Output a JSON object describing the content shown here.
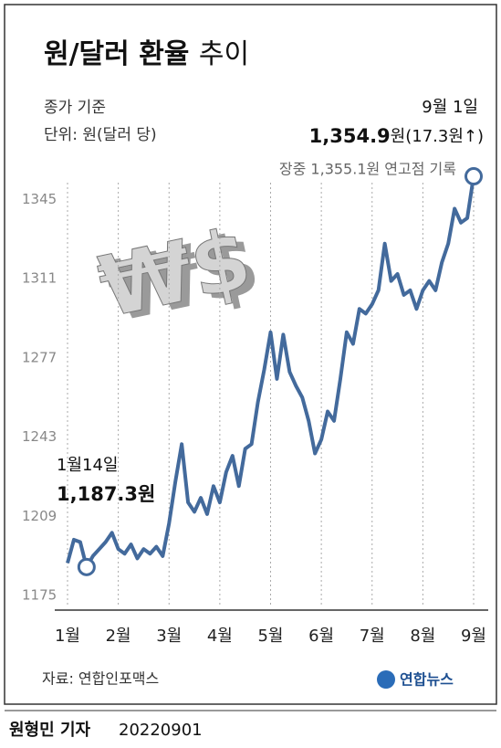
{
  "chart_data": {
    "type": "line",
    "title": {
      "main": "원/달러 환율",
      "light": "추이"
    },
    "subtitle": [
      "종가 기준",
      "단위: 원(달러 당)"
    ],
    "graphic_text": "₩$",
    "categories": [
      "1월",
      null,
      null,
      null,
      null,
      null,
      null,
      null,
      "2월",
      null,
      null,
      null,
      null,
      null,
      null,
      null,
      "3월",
      null,
      null,
      null,
      null,
      null,
      null,
      null,
      "4월",
      null,
      null,
      null,
      null,
      null,
      null,
      null,
      "5월",
      null,
      null,
      null,
      null,
      null,
      null,
      null,
      "6월",
      null,
      null,
      null,
      null,
      null,
      null,
      null,
      "7월",
      null,
      null,
      null,
      null,
      null,
      null,
      null,
      "8월",
      null,
      null,
      null,
      null,
      null,
      null,
      null,
      "9월"
    ],
    "series": [
      {
        "color": "#436a9c",
        "values": [
          1189,
          1199,
          1198,
          1187.3,
          1192,
          1195,
          1198,
          1202,
          1195,
          1193,
          1197,
          1191,
          1195,
          1193,
          1196,
          1192,
          1206,
          1224,
          1240,
          1215,
          1211,
          1217,
          1210,
          1222,
          1215,
          1228,
          1235,
          1222,
          1238,
          1240,
          1258,
          1272,
          1288,
          1268,
          1287,
          1271,
          1265,
          1260,
          1250,
          1236,
          1242,
          1254,
          1250,
          1268,
          1288,
          1283,
          1298,
          1296,
          1300,
          1306,
          1326,
          1310,
          1313,
          1304,
          1306,
          1298,
          1306,
          1310,
          1306,
          1318,
          1326,
          1341,
          1335,
          1337,
          1354.9
        ]
      }
    ],
    "ylim": [
      1170,
      1360
    ],
    "yticks": [
      1175,
      1209,
      1243,
      1277,
      1311,
      1345
    ],
    "annotations": [
      {
        "index": 3,
        "date": "1월14일",
        "value_label": "1,187.3원"
      },
      {
        "index": 64,
        "date": "9월 1일",
        "value_label": "1,354.9",
        "change": "원(17.3원↑)",
        "note": "장중 1,355.1원 연고점 기록"
      }
    ],
    "source": "자료: 연합인포맥스",
    "logo": "연합뉴스",
    "byline": "원형민 기자",
    "date": "20220901"
  }
}
